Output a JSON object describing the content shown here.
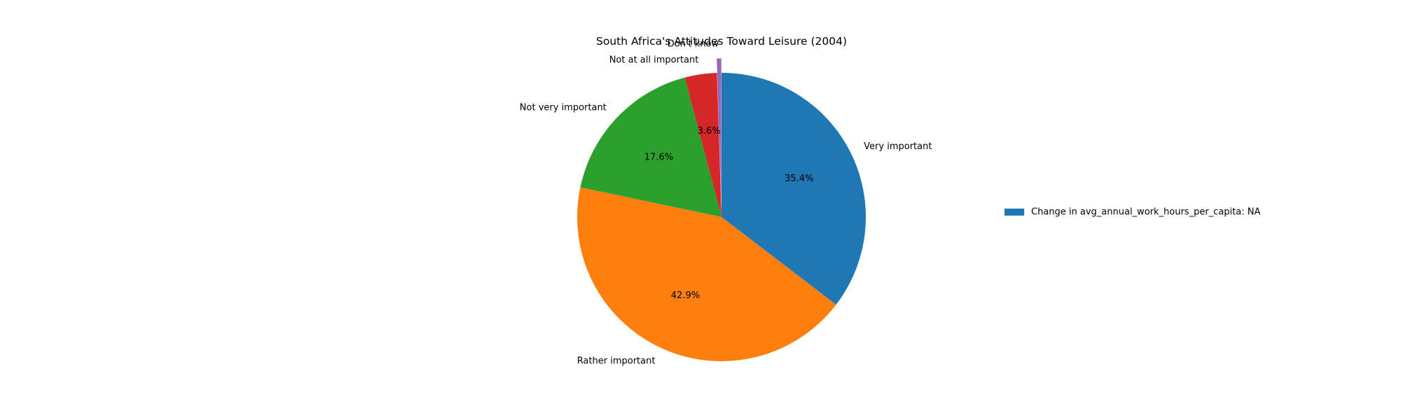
{
  "chart_data": {
    "type": "pie",
    "title": "South Africa's Attitudes Toward Leisure (2004)",
    "slices": [
      {
        "label": "Very important",
        "value": 35.4,
        "pct_label": "35.4%",
        "color": "#1f77b4"
      },
      {
        "label": "Rather important",
        "value": 42.9,
        "pct_label": "42.9%",
        "color": "#ff7f0e"
      },
      {
        "label": "Not very important",
        "value": 17.6,
        "pct_label": "17.6%",
        "color": "#2ca02c"
      },
      {
        "label": "Not at all important",
        "value": 3.6,
        "pct_label": "3.6%",
        "color": "#d62728"
      },
      {
        "label": "Don't know",
        "value": 0.5,
        "pct_label": "",
        "color": "#9467bd"
      }
    ],
    "start_angle_deg": 90,
    "direction": "clockwise",
    "exploded_slice": "Don't know",
    "legend": {
      "placement": "right",
      "entries": [
        {
          "label": "Change in avg_annual_work_hours_per_capita: NA",
          "color": "#1f77b4"
        }
      ]
    }
  }
}
